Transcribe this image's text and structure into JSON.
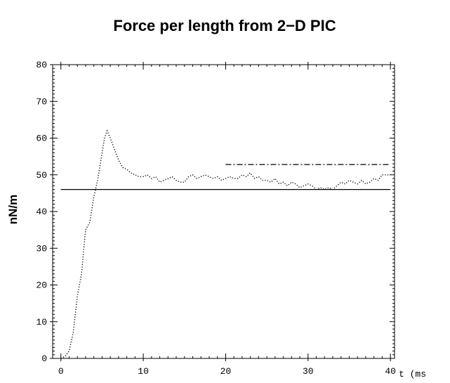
{
  "chart_data": {
    "type": "line",
    "title": "Force per length from 2−D PIC",
    "xlabel": "t (ms",
    "ylabel": "nN/m",
    "xlim": [
      -1,
      40.5
    ],
    "ylim": [
      0,
      80
    ],
    "x_ticks": [
      0,
      10,
      20,
      30,
      40
    ],
    "y_ticks": [
      0,
      10,
      20,
      30,
      40,
      50,
      60,
      70,
      80
    ],
    "grid": false,
    "colors": {
      "line": "#000000"
    },
    "series": [
      {
        "style": "dotted",
        "x": [
          0,
          0.5,
          1,
          1.5,
          2,
          2.5,
          3,
          3.5,
          4,
          4.5,
          5,
          5.3,
          5.6,
          6,
          6.5,
          7,
          7.5,
          8,
          8.5,
          9,
          9.5,
          10,
          10.5,
          11,
          11.5,
          12,
          12.5,
          13,
          13.5,
          14,
          14.5,
          15,
          15.5,
          16,
          16.5,
          17,
          17.5,
          18,
          18.5,
          19,
          19.5,
          20,
          20.5,
          21,
          21.5,
          22,
          22.5,
          23,
          23.5,
          24,
          24.5,
          25,
          25.5,
          26,
          26.5,
          27,
          27.5,
          28,
          28.5,
          29,
          29.5,
          30,
          30.5,
          31,
          31.5,
          32,
          32.5,
          33,
          33.5,
          34,
          34.5,
          35,
          35.5,
          36,
          36.5,
          37,
          37.5,
          38,
          38.5,
          39,
          39.5,
          40
        ],
        "y": [
          0,
          0.5,
          2,
          7,
          17,
          23,
          35,
          37,
          44,
          49,
          56,
          60,
          62,
          60,
          57,
          54,
          52,
          51.5,
          50.5,
          50,
          49.5,
          49.5,
          50,
          49,
          49.5,
          48,
          48.5,
          49,
          49.5,
          48.5,
          48,
          48,
          49.5,
          50,
          49,
          49.5,
          50,
          49.5,
          49,
          49.5,
          48.5,
          49,
          49.5,
          49,
          49,
          50,
          49.5,
          50.5,
          49,
          49.5,
          48.5,
          48.5,
          48,
          49,
          47.5,
          48,
          47,
          48,
          47.5,
          46.5,
          47,
          47.5,
          47,
          46,
          46.5,
          46,
          46.5,
          46,
          47,
          48,
          47.5,
          48.5,
          48,
          47.5,
          48.5,
          47.5,
          48,
          49,
          48.5,
          50,
          50,
          50
        ]
      },
      {
        "style": "solid",
        "x": [
          0,
          40
        ],
        "y": [
          46,
          46
        ]
      },
      {
        "style": "dashdot",
        "x": [
          20,
          40
        ],
        "y": [
          52.8,
          52.8
        ]
      }
    ]
  }
}
